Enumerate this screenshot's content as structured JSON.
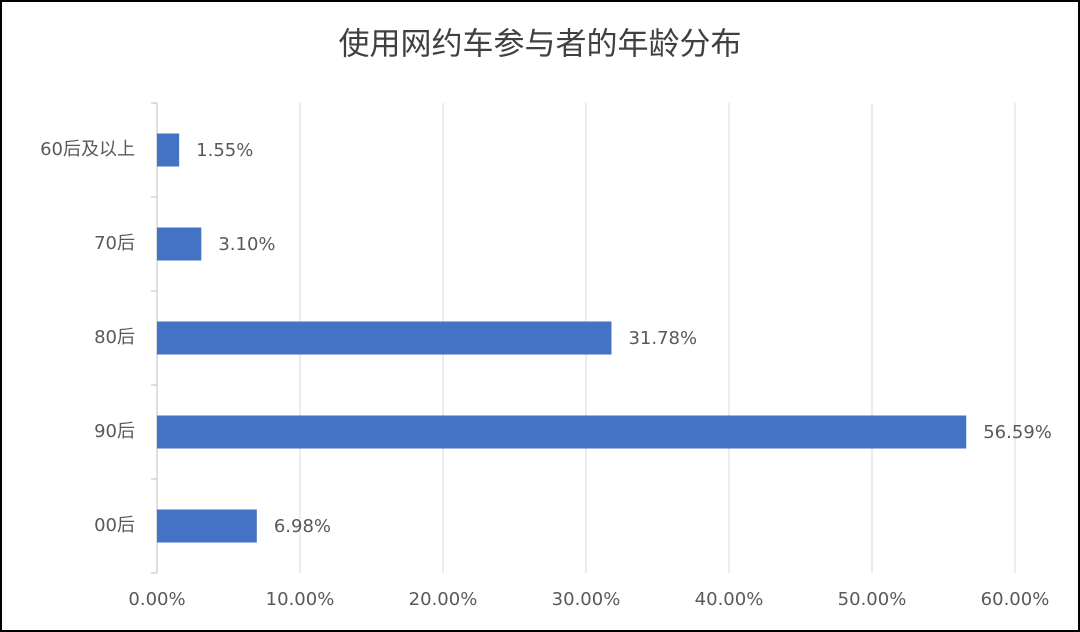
{
  "chart_data": {
    "type": "barh",
    "title": "使用网约车参与者的年龄分布",
    "categories": [
      "60后及以上",
      "70后",
      "80后",
      "90后",
      "00后"
    ],
    "values": [
      1.55,
      3.1,
      31.78,
      56.59,
      6.98
    ],
    "value_labels": [
      "1.55%",
      "3.10%",
      "31.78%",
      "56.59%",
      "6.98%"
    ],
    "color": "#4472c4",
    "xlim": [
      0,
      60
    ],
    "xticks": [
      {
        "value": 0,
        "label": "0.00%"
      },
      {
        "value": 10,
        "label": "10.00%"
      },
      {
        "value": 20,
        "label": "20.00%"
      },
      {
        "value": 30,
        "label": "30.00%"
      },
      {
        "value": 40,
        "label": "40.00%"
      },
      {
        "value": 50,
        "label": "50.00%"
      },
      {
        "value": 60,
        "label": "60.00%"
      }
    ],
    "grid": true
  }
}
